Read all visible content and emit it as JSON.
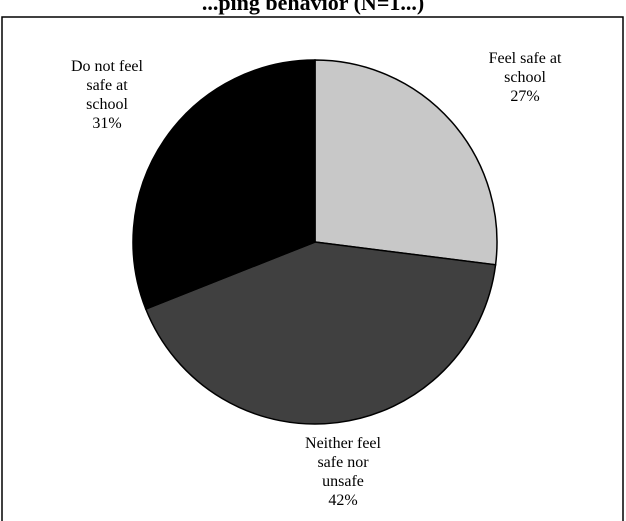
{
  "chart_data": {
    "type": "pie",
    "title": "...ping behavior (N=1...)",
    "series": [
      {
        "values": [
          27,
          42,
          31
        ],
        "categories": [
          "Feel safe at school",
          "Neither feel safe nor unsafe",
          "Do not feel safe at school"
        ],
        "colors": [
          "#c8c8c8",
          "#404040",
          "#000000"
        ]
      }
    ],
    "labels": [
      {
        "lines": [
          "Feel safe at",
          "school",
          "27%"
        ]
      },
      {
        "lines": [
          "Neither feel",
          "safe nor",
          "unsafe",
          "42%"
        ]
      },
      {
        "lines": [
          "Do not feel",
          "safe at",
          "school",
          "31%"
        ]
      }
    ],
    "start_angle_deg": 0,
    "direction": "clockwise",
    "legend": "none",
    "border_color": "#000000"
  }
}
